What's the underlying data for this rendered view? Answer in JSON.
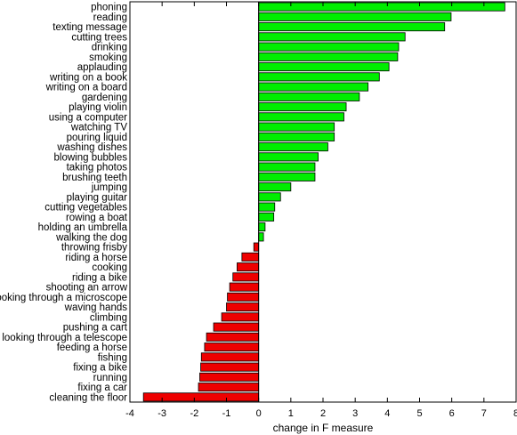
{
  "chart_data": {
    "type": "bar",
    "orientation": "horizontal",
    "title": "",
    "xlabel": "change in F measure",
    "ylabel": "",
    "xlim": [
      -4,
      8
    ],
    "xticks": [
      -4,
      -3,
      -2,
      -1,
      0,
      1,
      2,
      3,
      4,
      5,
      6,
      7,
      8
    ],
    "grid": false,
    "positive_color": "#00ee00",
    "negative_color": "#ee0000",
    "categories": [
      "phoning",
      "reading",
      "texting message",
      "cutting trees",
      "drinking",
      "smoking",
      "applauding",
      "writing on a book",
      "writing on a board",
      "gardening",
      "playing violin",
      "using a computer",
      "watching TV",
      "pouring liquid",
      "washing dishes",
      "blowing bubbles",
      "taking photos",
      "brushing teeth",
      "jumping",
      "playing guitar",
      "cutting vegetables",
      "rowing a boat",
      "holding an umbrella",
      "walking the dog",
      "throwing frisby",
      "riding a horse",
      "cooking",
      "riding a bike",
      "shooting an arrow",
      "looking through a microscope",
      "waving hands",
      "climbing",
      "pushing a cart",
      "looking through a telescope",
      "feeding a horse",
      "fishing",
      "fixing a bike",
      "running",
      "fixing a car",
      "cleaning the floor"
    ],
    "values": [
      7.65,
      5.98,
      5.78,
      4.55,
      4.35,
      4.32,
      4.05,
      3.75,
      3.4,
      3.13,
      2.72,
      2.65,
      2.35,
      2.35,
      2.15,
      1.85,
      1.75,
      1.75,
      1.0,
      0.68,
      0.5,
      0.47,
      0.2,
      0.15,
      -0.15,
      -0.52,
      -0.67,
      -0.8,
      -0.9,
      -0.97,
      -1.0,
      -1.15,
      -1.4,
      -1.62,
      -1.68,
      -1.78,
      -1.8,
      -1.83,
      -1.87,
      -3.58
    ]
  }
}
